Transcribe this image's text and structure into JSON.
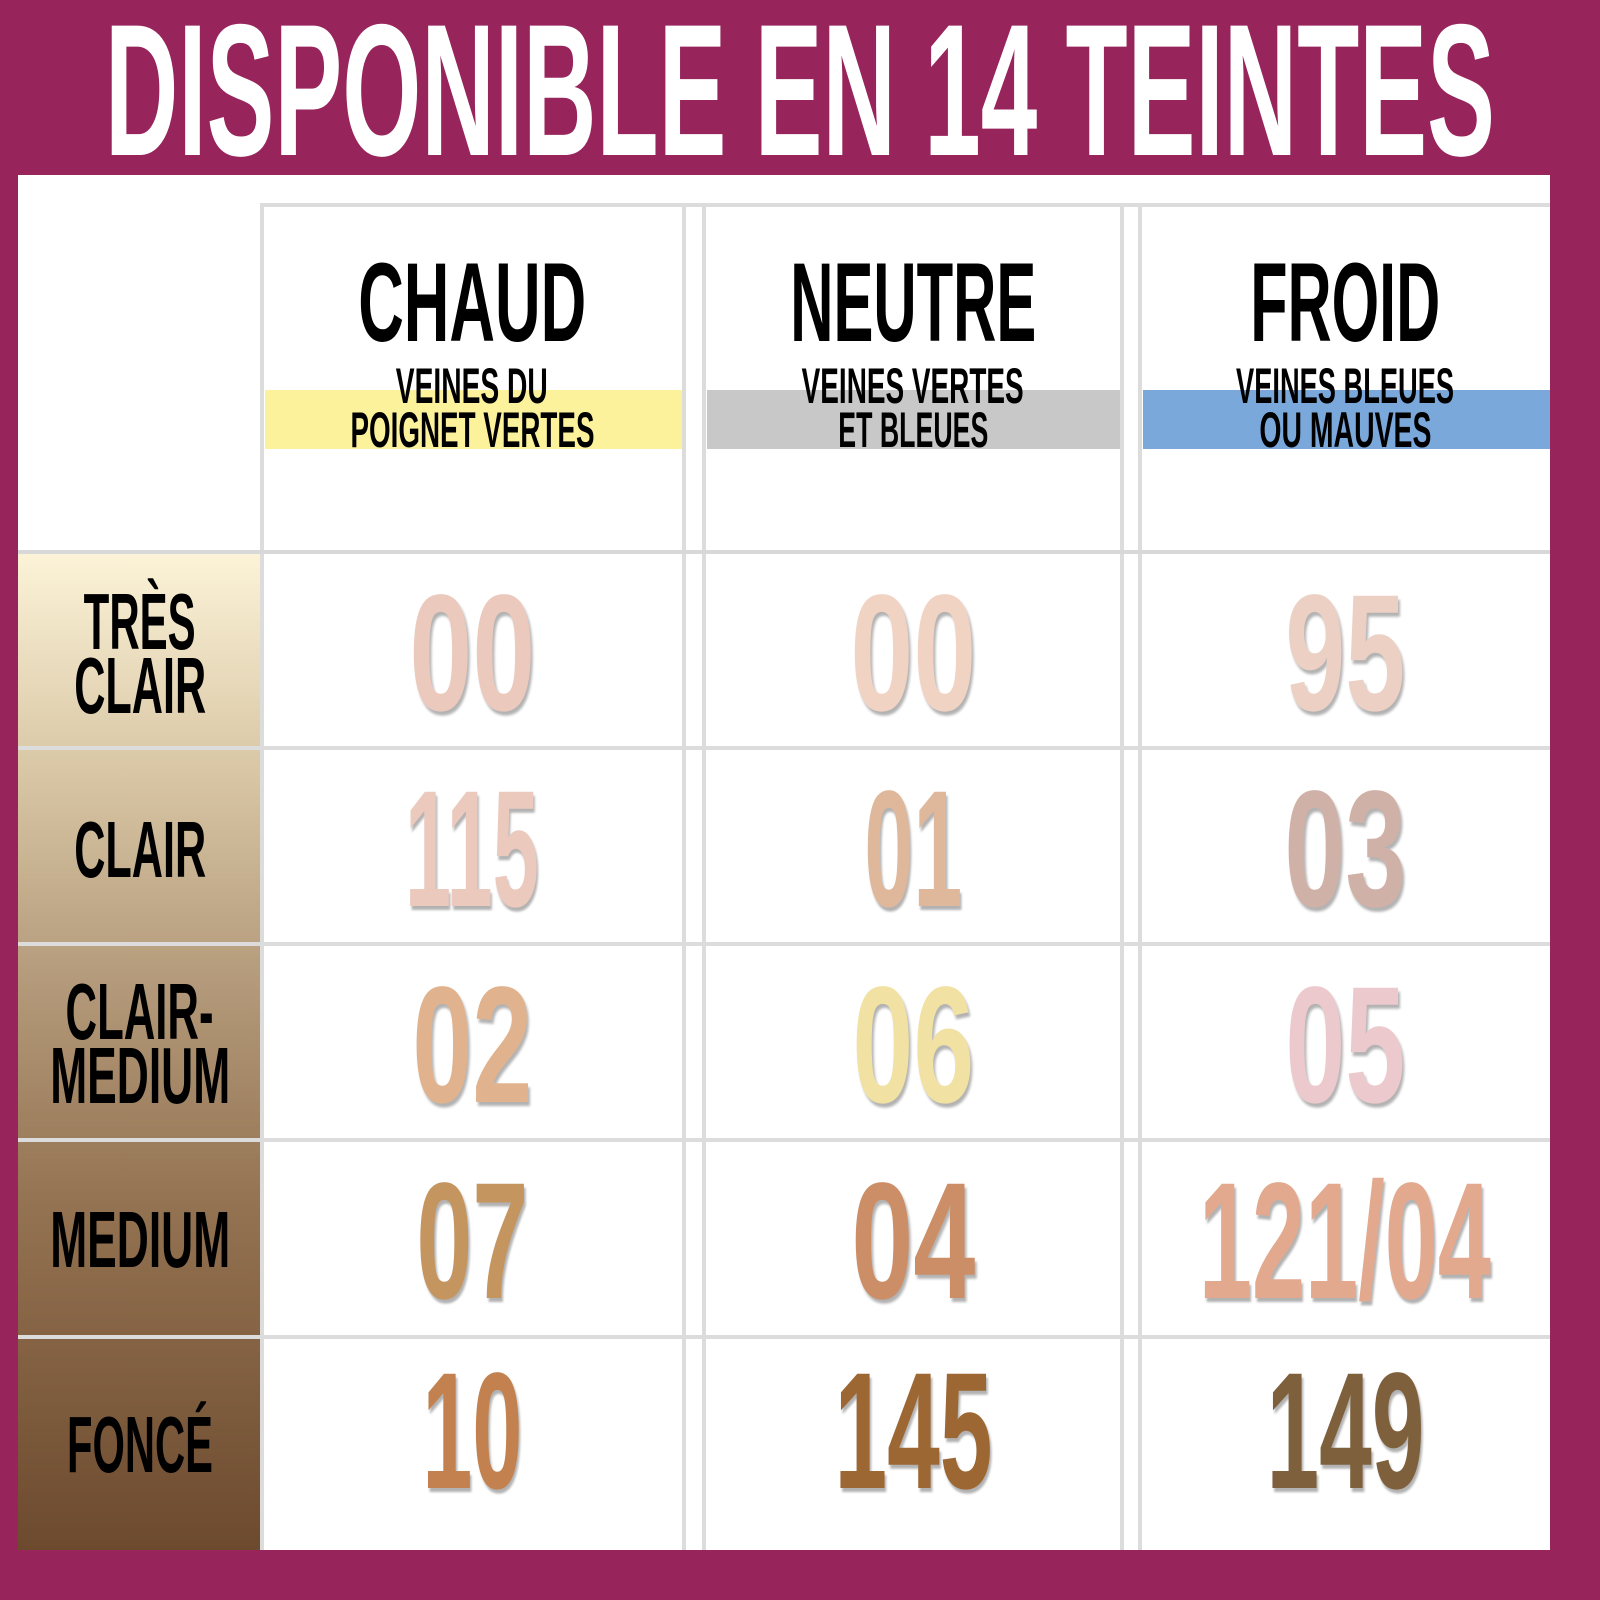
{
  "title": "DISPONIBLE EN 14 TEINTES",
  "colors": {
    "background": "#98245c",
    "chaud_band": "#fdf29c",
    "neutre_band": "#c8c8c8",
    "froid_band": "#7aa8da"
  },
  "columns": [
    {
      "name": "CHAUD",
      "sub1": "VEINES DU",
      "sub2": "POIGNET VERTES"
    },
    {
      "name": "NEUTRE",
      "sub1": "VEINES VERTES",
      "sub2": "ET BLEUES"
    },
    {
      "name": "FROID",
      "sub1": "VEINES BLEUES",
      "sub2": "OU MAUVES"
    }
  ],
  "rows": [
    {
      "label1": "TRÈS",
      "label2": "CLAIR",
      "shades": [
        {
          "code": "00",
          "color": "#ecc9bd"
        },
        {
          "code": "00",
          "color": "#f0d3c3"
        },
        {
          "code": "95",
          "color": "#ecd0c3"
        }
      ]
    },
    {
      "label1": "CLAIR",
      "label2": "",
      "shades": [
        {
          "code": "115",
          "color": "#ecc9bd"
        },
        {
          "code": "01",
          "color": "#dfb79a"
        },
        {
          "code": "03",
          "color": "#d0b1a7"
        }
      ]
    },
    {
      "label1": "CLAIR-",
      "label2": "MEDIUM",
      "shades": [
        {
          "code": "02",
          "color": "#e0b38e"
        },
        {
          "code": "06",
          "color": "#f1e1a2"
        },
        {
          "code": "05",
          "color": "#ecc9cd"
        }
      ]
    },
    {
      "label1": "MEDIUM",
      "label2": "",
      "shades": [
        {
          "code": "07",
          "color": "#c4955f"
        },
        {
          "code": "04",
          "color": "#cc8e66"
        },
        {
          "code": "121/04",
          "color": "#e2a98f"
        }
      ]
    },
    {
      "label1": "FONCÉ",
      "label2": "",
      "shades": [
        {
          "code": "10",
          "color": "#c2814e"
        },
        {
          "code": "145",
          "color": "#9c6732"
        },
        {
          "code": "149",
          "color": "#7f603c"
        }
      ]
    }
  ]
}
